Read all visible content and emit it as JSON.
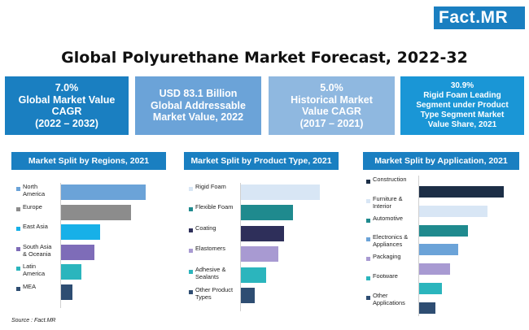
{
  "logo": {
    "left": "Fact",
    "right": "MR"
  },
  "title": "Global Polyurethane Market Forecast, 2022-32",
  "kpis": [
    {
      "text": "7.0%\nGlobal Market Value\nCAGR\n(2022 – 2032)",
      "color": "#1a7fc1"
    },
    {
      "text": "USD 83.1 Billion\nGlobal Addressable\nMarket Value, 2022",
      "color": "#6ba3d8"
    },
    {
      "text": "5.0%\nHistorical Market\nValue CAGR\n(2017 – 2021)",
      "color": "#8fb8e0"
    },
    {
      "text": "30.9%\nRigid Foam Leading\nSegment under Product\nType Segment Market\nValue Share, 2021",
      "color": "#1a96d6"
    }
  ],
  "source": "Source : Fact.MR",
  "chart_data": [
    {
      "type": "bar",
      "orientation": "horizontal",
      "title": "Market Split by Regions, 2021",
      "categories": [
        "North\nAmerica",
        "Europe",
        "East Asia",
        "South Asia\n& Oceania",
        "Latin\nAmerica",
        "MEA"
      ],
      "values": [
        29.5,
        24.5,
        13.5,
        11.5,
        7.0,
        4.0
      ],
      "colors": [
        "#6ba3d8",
        "#8c8c8c",
        "#17b0e8",
        "#7e6cb8",
        "#2bb5bd",
        "#2e4d72"
      ]
    },
    {
      "type": "bar",
      "orientation": "horizontal",
      "title": "Market Split by Product Type, 2021",
      "categories": [
        "Rigid Foam",
        "Flexible Foam",
        "Coating",
        "Elastomers",
        "Adhesive &\nSealants",
        "Other Product\nTypes"
      ],
      "values": [
        30.9,
        20.5,
        17.0,
        14.5,
        10.0,
        5.5
      ],
      "colors": [
        "#d8e6f5",
        "#1f8a8e",
        "#2e2f5a",
        "#a89ad2",
        "#2bb5bd",
        "#2e4d72"
      ]
    },
    {
      "type": "bar",
      "orientation": "horizontal",
      "title": "Market Split by Application, 2021",
      "categories": [
        "Construction",
        "Furniture &\nInterior",
        "Automotive",
        "Electronics &\nAppliances",
        "Packaging",
        "Footware",
        "Other\nApplications"
      ],
      "values": [
        26.0,
        21.0,
        15.0,
        12.0,
        9.5,
        7.0,
        5.0
      ],
      "colors": [
        "#1c2e46",
        "#d8e6f5",
        "#1f8a8e",
        "#6ba3d8",
        "#a89ad2",
        "#2bb5bd",
        "#2e4d72"
      ]
    }
  ]
}
